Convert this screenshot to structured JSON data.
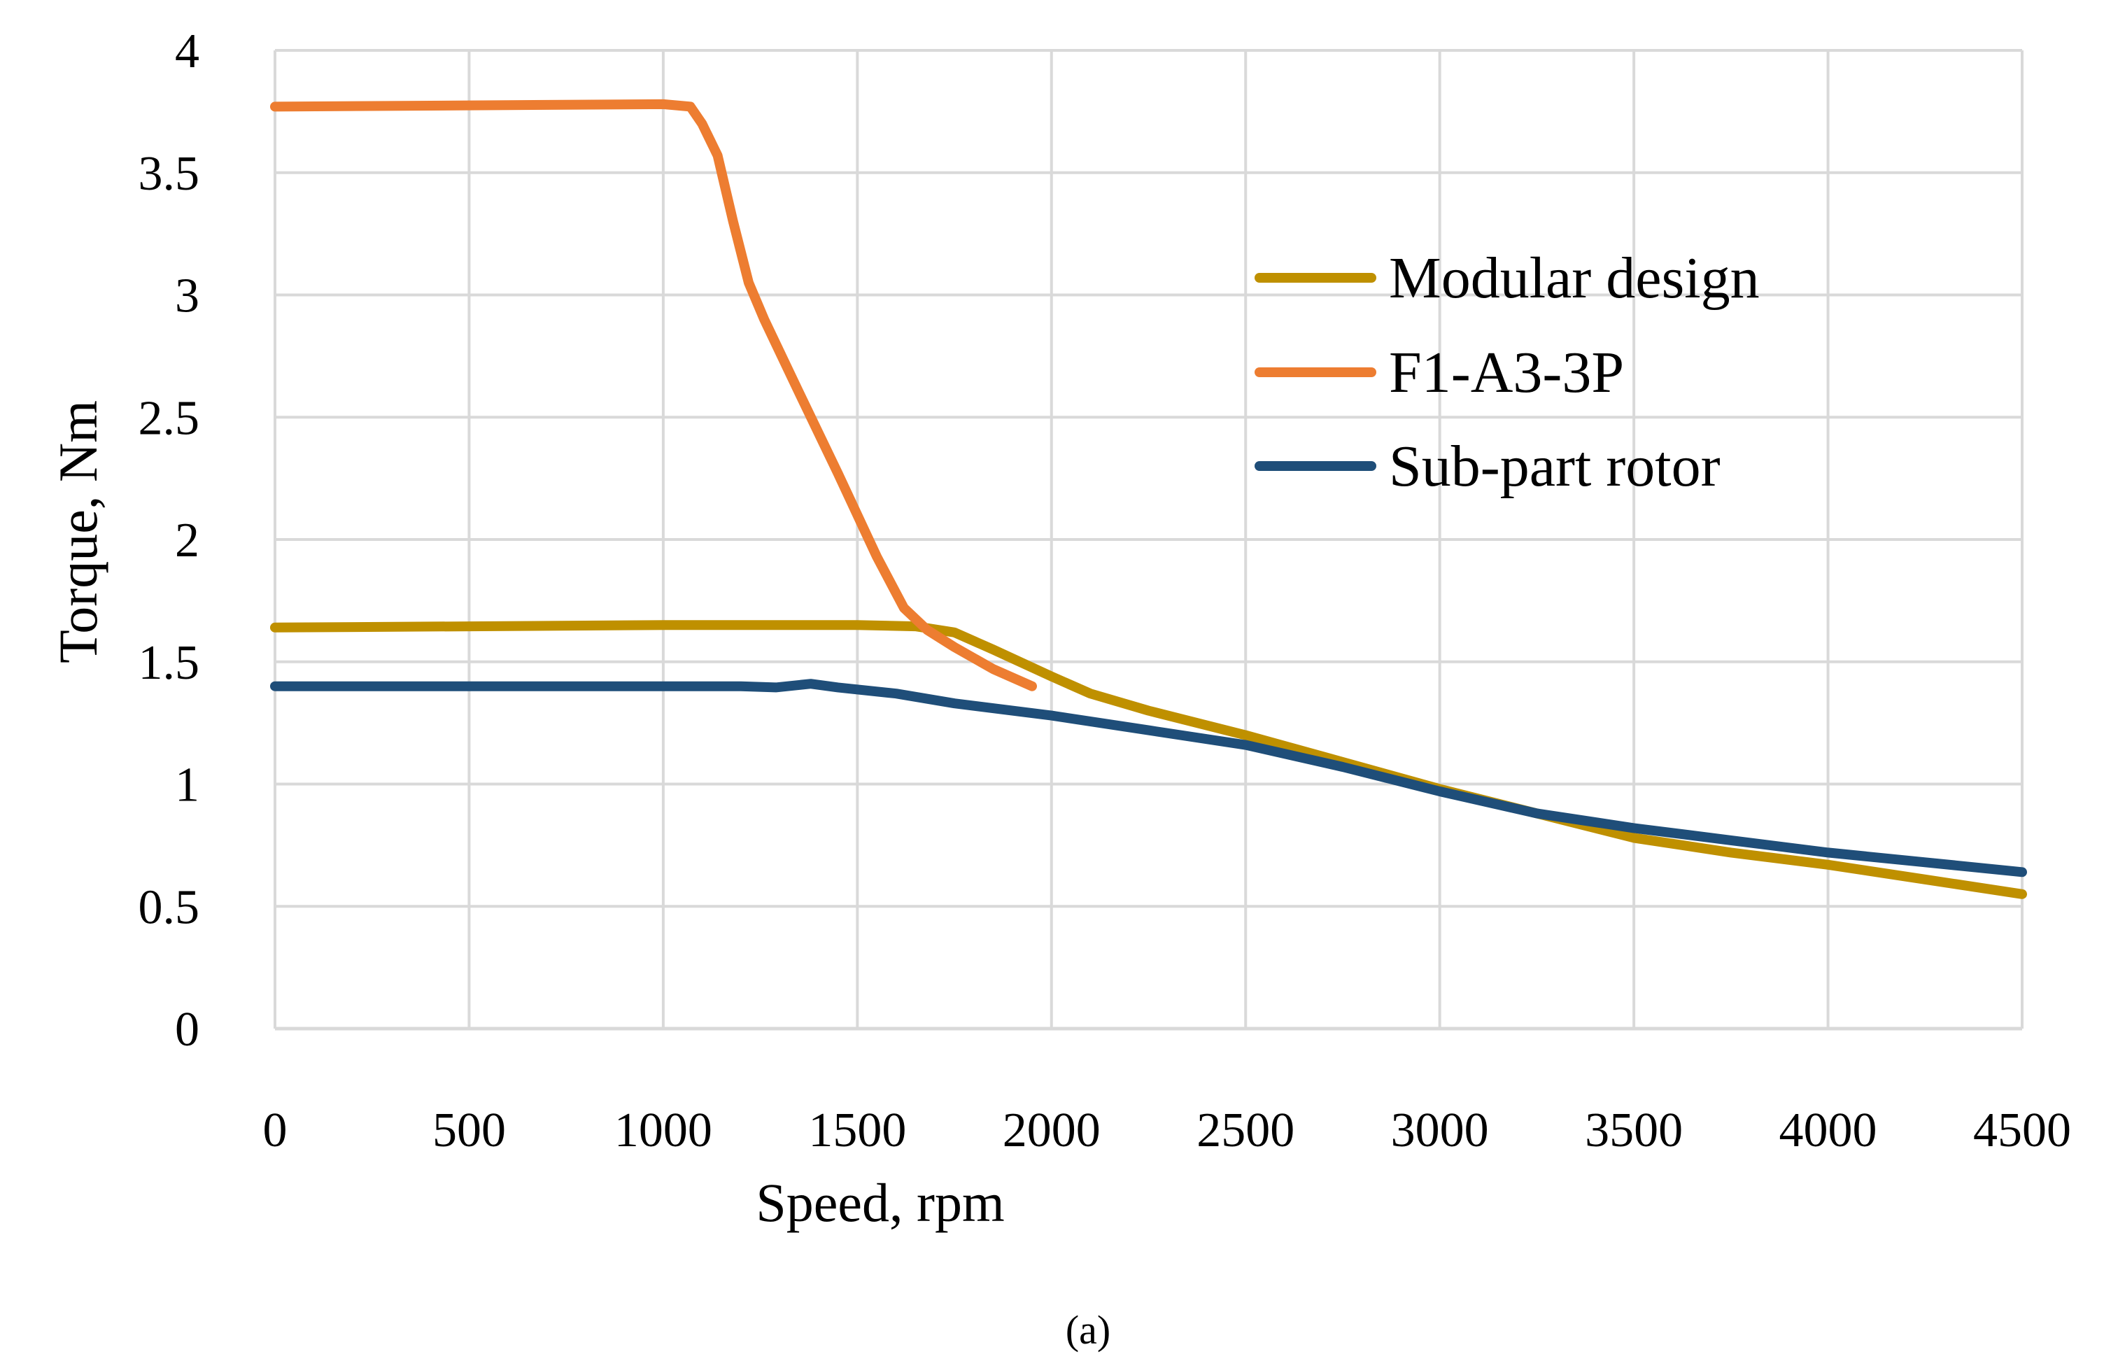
{
  "chart_data": {
    "type": "line",
    "title": "",
    "xlabel": "Speed, rpm",
    "ylabel": "Torque, Nm",
    "panel_label": "(a)",
    "xlim": [
      0,
      4500
    ],
    "ylim": [
      0,
      4
    ],
    "x_ticks": [
      0,
      500,
      1000,
      1500,
      2000,
      2500,
      3000,
      3500,
      4000,
      4500
    ],
    "y_ticks": [
      0,
      0.5,
      1,
      1.5,
      2,
      2.5,
      3,
      3.5,
      4
    ],
    "grid": true,
    "legend_position": "right",
    "series": [
      {
        "name": "Modular design",
        "color": "#BF9000",
        "points": [
          [
            0,
            1.64
          ],
          [
            500,
            1.645
          ],
          [
            1000,
            1.65
          ],
          [
            1250,
            1.65
          ],
          [
            1500,
            1.65
          ],
          [
            1650,
            1.645
          ],
          [
            1750,
            1.62
          ],
          [
            1850,
            1.55
          ],
          [
            2000,
            1.44
          ],
          [
            2100,
            1.37
          ],
          [
            2250,
            1.3
          ],
          [
            2500,
            1.2
          ],
          [
            2750,
            1.09
          ],
          [
            3000,
            0.98
          ],
          [
            3250,
            0.88
          ],
          [
            3500,
            0.78
          ],
          [
            3750,
            0.72
          ],
          [
            4000,
            0.67
          ],
          [
            4250,
            0.61
          ],
          [
            4500,
            0.55
          ]
        ]
      },
      {
        "name": "F1-A3-3P",
        "color": "#ED7D31",
        "points": [
          [
            0,
            3.77
          ],
          [
            500,
            3.775
          ],
          [
            1000,
            3.78
          ],
          [
            1070,
            3.77
          ],
          [
            1100,
            3.7
          ],
          [
            1140,
            3.57
          ],
          [
            1180,
            3.3
          ],
          [
            1220,
            3.05
          ],
          [
            1260,
            2.9
          ],
          [
            1350,
            2.6
          ],
          [
            1450,
            2.27
          ],
          [
            1550,
            1.93
          ],
          [
            1620,
            1.72
          ],
          [
            1680,
            1.63
          ],
          [
            1750,
            1.56
          ],
          [
            1850,
            1.47
          ],
          [
            1950,
            1.4
          ]
        ]
      },
      {
        "name": "Sub-part rotor",
        "color": "#1F4E79",
        "points": [
          [
            0,
            1.4
          ],
          [
            500,
            1.4
          ],
          [
            1000,
            1.4
          ],
          [
            1200,
            1.4
          ],
          [
            1290,
            1.395
          ],
          [
            1380,
            1.41
          ],
          [
            1450,
            1.395
          ],
          [
            1600,
            1.37
          ],
          [
            1750,
            1.33
          ],
          [
            2000,
            1.28
          ],
          [
            2250,
            1.22
          ],
          [
            2500,
            1.16
          ],
          [
            2750,
            1.07
          ],
          [
            3000,
            0.97
          ],
          [
            3250,
            0.88
          ],
          [
            3500,
            0.82
          ],
          [
            3750,
            0.77
          ],
          [
            4000,
            0.72
          ],
          [
            4250,
            0.68
          ],
          [
            4500,
            0.64
          ]
        ]
      }
    ]
  }
}
